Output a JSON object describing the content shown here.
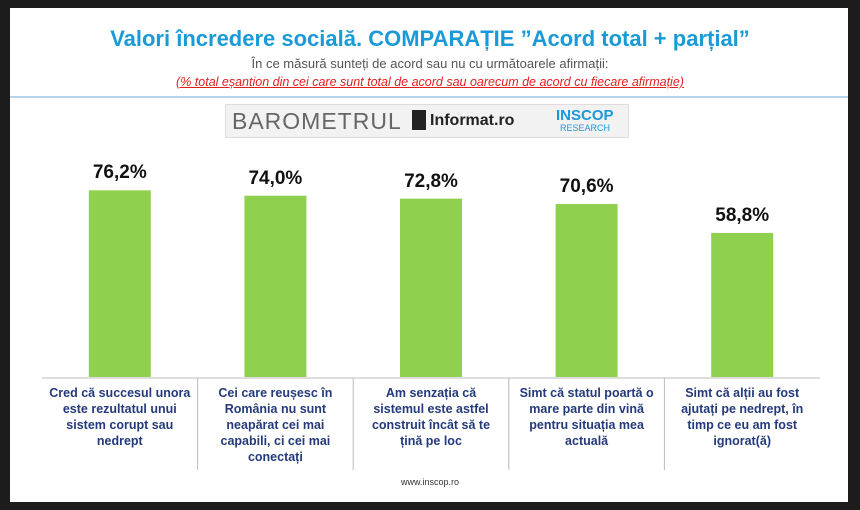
{
  "chart_data": {
    "type": "bar",
    "title": "Valori încredere socială. COMPARAȚIE ”Acord total + parțial”",
    "subtitle": "În ce măsură sunteți de acord sau nu cu următoarele afirmații:",
    "note": "(% total eșantion din cei care sunt total de acord sau oarecum de acord cu fiecare afirmație)",
    "logos": [
      "BAROMETRUL",
      "Informat.ro",
      "INSCOP",
      "RESEARCH"
    ],
    "categories": [
      "Cred că succesul unora este rezultatul unui sistem corupt sau nedrept",
      "Cei care reușesc în România nu sunt neapărat cei mai capabili, ci cei mai conectați",
      "Am senzația că sistemul este astfel construit încât să te țină pe loc",
      "Simt că statul poartă o mare parte din vină pentru situația mea actuală",
      "Simt că alții au fost ajutați pe nedrept, în timp ce eu am fost ignorat(ă)"
    ],
    "values": [
      76.2,
      74.0,
      72.8,
      70.6,
      58.8
    ],
    "value_labels": [
      "76,2%",
      "74,0%",
      "72,8%",
      "70,6%",
      "58,8%"
    ],
    "color": "#8fd14f",
    "source": "www.inscop.ro"
  }
}
